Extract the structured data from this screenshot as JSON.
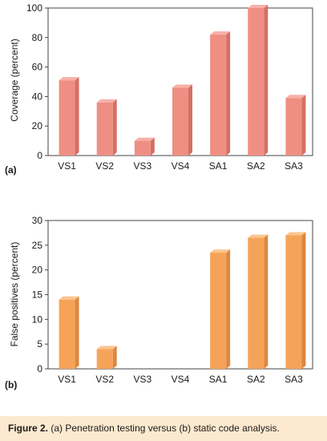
{
  "chart_data": [
    {
      "type": "bar",
      "panel_label": "(a)",
      "categories": [
        "VS1",
        "VS2",
        "VS3",
        "VS4",
        "SA1",
        "SA2",
        "SA3"
      ],
      "values": [
        51,
        36,
        10,
        46,
        82,
        100,
        39
      ],
      "ylabel": "Coverage (percent)",
      "ylim": [
        0,
        100
      ],
      "yticks": [
        "0",
        "20",
        "40",
        "60",
        "80",
        "100"
      ],
      "bar_color": "#ef8f84",
      "bar_side_color": "#d66f65",
      "bar_top_color": "#f7b1a8",
      "grid": false
    },
    {
      "type": "bar",
      "panel_label": "(b)",
      "categories": [
        "VS1",
        "VS2",
        "VS3",
        "VS4",
        "SA1",
        "SA2",
        "SA3"
      ],
      "values": [
        14,
        4,
        0,
        0,
        23.5,
        26.5,
        27
      ],
      "ylabel": "False positives (percent)",
      "ylim": [
        0,
        30
      ],
      "yticks": [
        "0",
        "5",
        "10",
        "15",
        "20",
        "25",
        "30"
      ],
      "bar_color": "#f6a35a",
      "bar_side_color": "#dd8740",
      "bar_top_color": "#fbc58e",
      "grid": false
    }
  ],
  "caption": {
    "prefix": "Figure 2.",
    "text": "(a) Penetration testing versus (b) static code analysis."
  }
}
